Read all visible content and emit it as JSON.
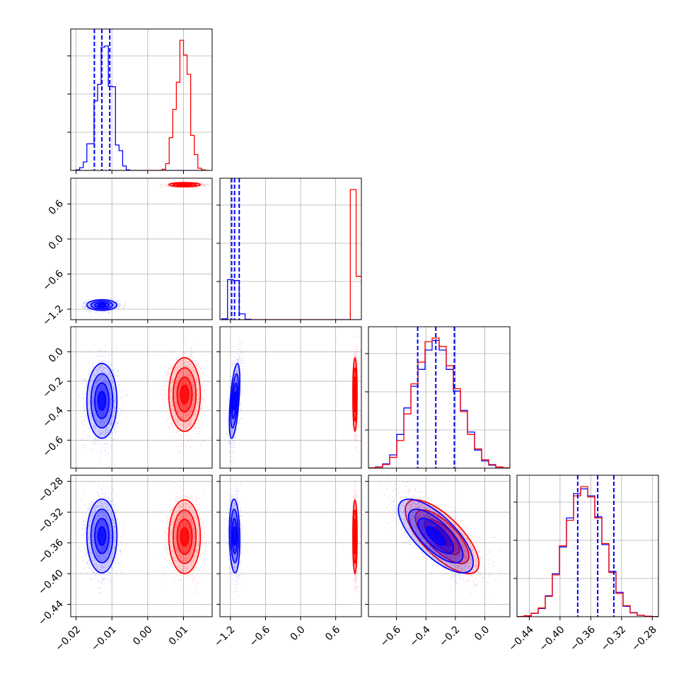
{
  "colors": {
    "series_a": "#0000ff",
    "series_b": "#ff0000",
    "grid": "#b0b0b0",
    "frame": "#000000"
  },
  "chart_data": {
    "type": "corner",
    "title": "",
    "parameters": [
      {
        "range": [
          -0.0215,
          0.018
        ],
        "ticks": [
          -0.02,
          -0.01,
          0.0,
          0.01
        ],
        "tick_labels": [
          "−0.02",
          "−0.01",
          "0.00",
          "0.01"
        ],
        "quantiles_a": [
          -0.0149,
          -0.0128,
          -0.0106
        ]
      },
      {
        "range": [
          -1.38,
          1.04
        ],
        "ticks": [
          -1.2,
          -0.6,
          0.0,
          0.6
        ],
        "tick_labels": [
          "−1.2",
          "−0.6",
          "0.0",
          "0.6"
        ],
        "quantiles_a": [
          -1.18,
          -1.13,
          -1.05
        ]
      },
      {
        "range": [
          -0.79,
          0.17
        ],
        "ticks": [
          -0.6,
          -0.4,
          -0.2,
          0.0
        ],
        "tick_labels": [
          "−0.6",
          "−0.4",
          "−0.2",
          "0.0"
        ],
        "quantiles_a": [
          -0.456,
          -0.333,
          -0.207
        ]
      },
      {
        "range": [
          -0.456,
          -0.272
        ],
        "ticks": [
          -0.44,
          -0.4,
          -0.36,
          -0.32,
          -0.28
        ],
        "tick_labels": [
          "−0.44",
          "−0.40",
          "−0.36",
          "−0.32",
          "−0.28"
        ],
        "quantiles_a": [
          -0.377,
          -0.351,
          -0.33
        ]
      }
    ],
    "histograms": [
      {
        "param": 0,
        "bins": [
          -0.021,
          -0.02,
          -0.019,
          -0.018,
          -0.017,
          -0.016,
          -0.015,
          -0.014,
          -0.013,
          -0.012,
          -0.011,
          -0.01,
          -0.009,
          -0.008,
          -0.007,
          -0.006,
          -0.005,
          -0.004,
          -0.003,
          -0.002,
          -0.001,
          0.0,
          0.001,
          0.002,
          0.003,
          0.004,
          0.005,
          0.006,
          0.007,
          0.008,
          0.009,
          0.01,
          0.011,
          0.012,
          0.013,
          0.014,
          0.015,
          0.016,
          0.017
        ],
        "series": [
          {
            "values": [
              0,
              5,
              25,
              75,
              235,
              235,
              615,
              760,
              1090,
              1100,
              745,
              740,
              225,
              175,
              40,
              5,
              0,
              0,
              0,
              0,
              0,
              0,
              0,
              0,
              0,
              0,
              0,
              0,
              0,
              0,
              0,
              0,
              0,
              0,
              0,
              0,
              0,
              0
            ]
          },
          {
            "values": [
              0,
              0,
              0,
              0,
              0,
              0,
              0,
              0,
              0,
              0,
              0,
              0,
              0,
              0,
              0,
              0,
              0,
              0,
              0,
              0,
              0,
              0,
              0,
              0,
              0,
              10,
              60,
              290,
              540,
              780,
              1150,
              1020,
              850,
              310,
              140,
              20,
              5,
              0
            ]
          }
        ]
      },
      {
        "param": 1,
        "bins": [
          -1.35,
          -1.25,
          -1.15,
          -1.05,
          -0.95,
          -0.85,
          -0.75,
          -0.65,
          -0.55,
          -0.45,
          -0.35,
          -0.25,
          -0.15,
          -0.05,
          0.05,
          0.15,
          0.25,
          0.35,
          0.45,
          0.55,
          0.65,
          0.75,
          0.85,
          0.95,
          1.05
        ],
        "series": [
          {
            "values": [
              10,
              480,
              470,
              70,
              5,
              0,
              0,
              0,
              0,
              0,
              0,
              0,
              0,
              0,
              0,
              0,
              0,
              0,
              0,
              0,
              0,
              0,
              0,
              0
            ]
          },
          {
            "values": [
              0,
              0,
              0,
              0,
              0,
              0,
              0,
              0,
              0,
              0,
              0,
              0,
              0,
              0,
              0,
              0,
              0,
              0,
              0,
              0,
              0,
              0,
              1560,
              520
            ]
          }
        ]
      },
      {
        "param": 2,
        "bins": [
          -0.79,
          -0.742,
          -0.694,
          -0.646,
          -0.598,
          -0.55,
          -0.502,
          -0.454,
          -0.406,
          -0.358,
          -0.31,
          -0.262,
          -0.214,
          -0.166,
          -0.118,
          -0.07,
          -0.022,
          0.026,
          0.074,
          0.122,
          0.17
        ],
        "series": [
          {
            "values": [
              3,
              10,
              35,
              110,
              280,
              500,
              680,
              820,
              980,
              1060,
              980,
              820,
              640,
              480,
              300,
              150,
              60,
              25,
              8,
              2
            ]
          },
          {
            "values": [
              2,
              8,
              30,
              90,
              230,
              450,
              700,
              880,
              1050,
              1080,
              1010,
              850,
              660,
              470,
              280,
              160,
              70,
              30,
              10,
              3
            ]
          }
        ]
      },
      {
        "param": 3,
        "bins": [
          -0.456,
          -0.4468,
          -0.4376,
          -0.4284,
          -0.4192,
          -0.41,
          -0.4008,
          -0.3916,
          -0.3824,
          -0.3732,
          -0.364,
          -0.3548,
          -0.3456,
          -0.3364,
          -0.3272,
          -0.318,
          -0.3088,
          -0.2996,
          -0.2904,
          -0.2812,
          -0.272
        ],
        "series": [
          {
            "values": [
              2,
              8,
              28,
              70,
              180,
              370,
              600,
              850,
              1060,
              1100,
              1040,
              860,
              620,
              390,
              210,
              90,
              35,
              12,
              4,
              1
            ]
          },
          {
            "values": [
              2,
              8,
              30,
              75,
              175,
              360,
              610,
              830,
              1040,
              1120,
              1030,
              850,
              630,
              380,
              200,
              95,
              32,
              12,
              4,
              1
            ]
          }
        ]
      }
    ],
    "pairs": [
      {
        "x": 1,
        "y": 0,
        "a": {
          "mean": [
            -0.0128,
            -1.13
          ],
          "sd": [
            0.0021,
            0.045
          ],
          "rho": 0.0
        },
        "b": {
          "mean": [
            0.0103,
            0.93
          ],
          "sd": [
            0.0022,
            0.018
          ],
          "rho": 0.0
        }
      },
      {
        "x": 2,
        "y": 0,
        "a": {
          "mean": [
            -0.0128,
            -0.333
          ],
          "sd": [
            0.0021,
            0.127
          ],
          "rho": 0.0
        },
        "b": {
          "mean": [
            0.0103,
            -0.29
          ],
          "sd": [
            0.0022,
            0.125
          ],
          "rho": 0.0
        }
      },
      {
        "x": 2,
        "y": 1,
        "a": {
          "mean": [
            -1.13,
            -0.333
          ],
          "sd": [
            0.045,
            0.127
          ],
          "rho": 0.55
        },
        "b": {
          "mean": [
            0.93,
            -0.29
          ],
          "sd": [
            0.018,
            0.125
          ],
          "rho": 0.0
        }
      },
      {
        "x": 3,
        "y": 0,
        "a": {
          "mean": [
            -0.0128,
            -0.351
          ],
          "sd": [
            0.0021,
            0.024
          ],
          "rho": 0.0
        },
        "b": {
          "mean": [
            0.0103,
            -0.352
          ],
          "sd": [
            0.0022,
            0.024
          ],
          "rho": 0.0
        }
      },
      {
        "x": 3,
        "y": 1,
        "a": {
          "mean": [
            -1.13,
            -0.351
          ],
          "sd": [
            0.045,
            0.024
          ],
          "rho": -0.1
        },
        "b": {
          "mean": [
            0.93,
            -0.352
          ],
          "sd": [
            0.018,
            0.024
          ],
          "rho": 0.0
        }
      },
      {
        "x": 3,
        "y": 2,
        "a": {
          "mean": [
            -0.333,
            -0.351
          ],
          "sd": [
            0.127,
            0.024
          ],
          "rho": -0.72
        },
        "b": {
          "mean": [
            -0.29,
            -0.352
          ],
          "sd": [
            0.125,
            0.024
          ],
          "rho": -0.72
        }
      }
    ],
    "grid": true,
    "legend": "none"
  }
}
